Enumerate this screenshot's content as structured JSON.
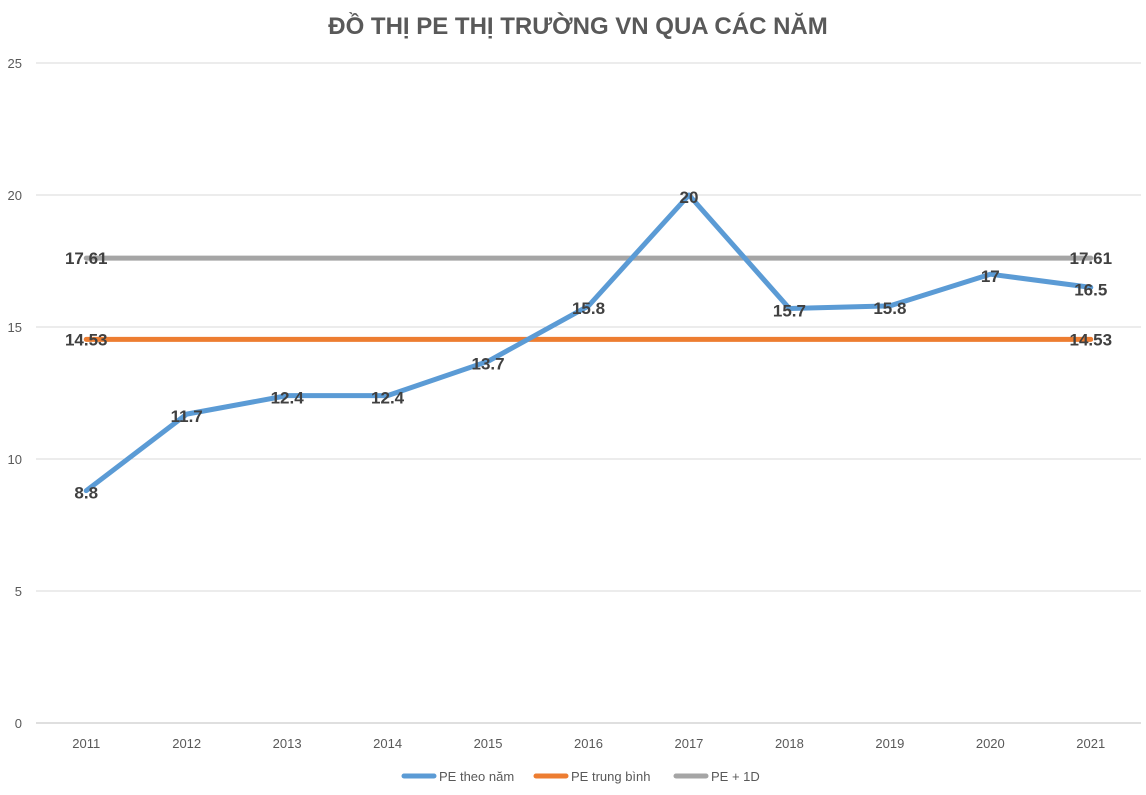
{
  "chart_data": {
    "type": "line",
    "title": "ĐỒ THỊ PE THỊ TRƯỜNG VN QUA CÁC NĂM",
    "xlabel": "",
    "ylabel": "",
    "categories": [
      "2011",
      "2012",
      "2013",
      "2014",
      "2015",
      "2016",
      "2017",
      "2018",
      "2019",
      "2020",
      "2021"
    ],
    "ylim": [
      0,
      25
    ],
    "yticks": [
      0,
      5,
      10,
      15,
      20,
      25
    ],
    "grid": true,
    "legend_position": "bottom",
    "series": [
      {
        "name": "PE theo năm",
        "color": "#5b9bd5",
        "values": [
          8.8,
          11.7,
          12.4,
          12.4,
          13.7,
          15.8,
          20,
          15.7,
          15.8,
          17,
          16.5
        ],
        "labels": [
          "8.8",
          "11.7",
          "12.4",
          "12.4",
          "13.7",
          "15.8",
          "20",
          "15.7",
          "15.8",
          "17",
          "16.5"
        ]
      },
      {
        "name": "PE trung bình",
        "color": "#ed7d31",
        "values": [
          14.53,
          14.53,
          14.53,
          14.53,
          14.53,
          14.53,
          14.53,
          14.53,
          14.53,
          14.53,
          14.53
        ],
        "end_labels": [
          "14.53",
          "14.53"
        ]
      },
      {
        "name": "PE + 1D",
        "color": "#a5a5a5",
        "values": [
          17.61,
          17.61,
          17.61,
          17.61,
          17.61,
          17.61,
          17.61,
          17.61,
          17.61,
          17.61,
          17.61
        ],
        "end_labels": [
          "17.61",
          "17.61"
        ]
      }
    ]
  }
}
